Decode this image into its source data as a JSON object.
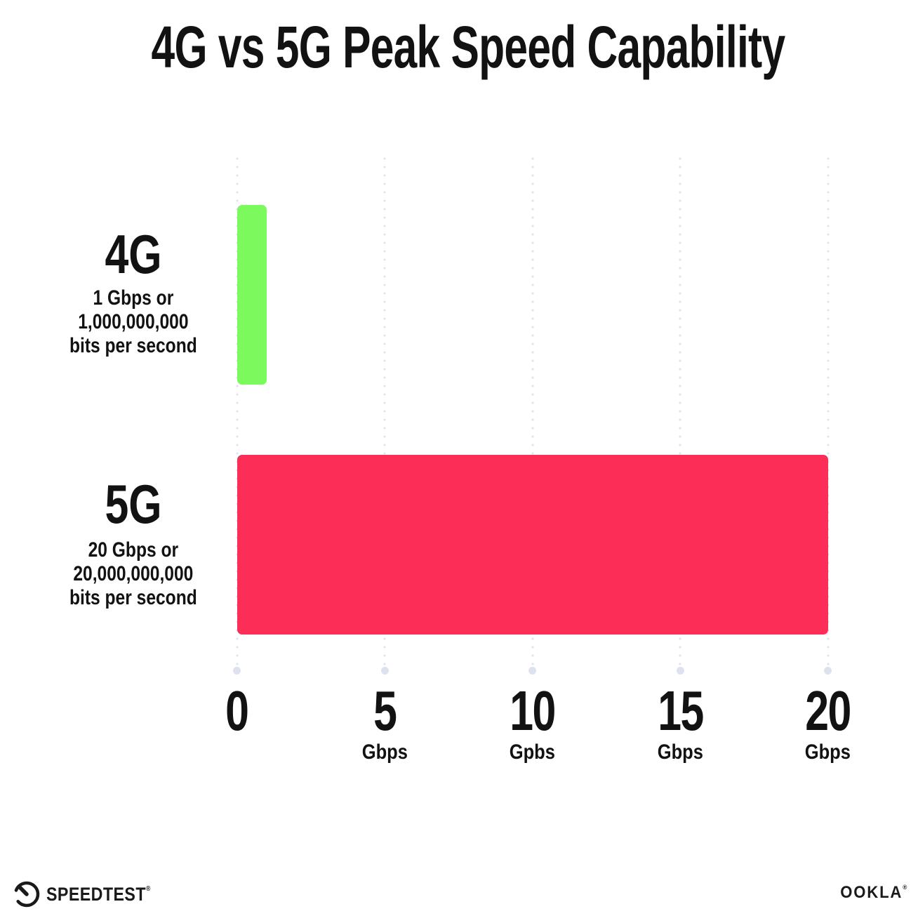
{
  "title": "4G vs 5G Peak Speed Capability",
  "chart_data": {
    "type": "bar",
    "orientation": "horizontal",
    "title": "4G vs 5G Peak Speed Capability",
    "categories": [
      "4G",
      "5G"
    ],
    "values": [
      1,
      20
    ],
    "value_unit": "Gbps",
    "bar_colors": [
      "#7BF95D",
      "#FC2D56"
    ],
    "category_sublabels": [
      [
        "1 Gbps or",
        "1,000,000,000",
        "bits per second"
      ],
      [
        "20 Gbps or",
        "20,000,000,000",
        "bits per second"
      ]
    ],
    "x_ticks": [
      {
        "value": "0",
        "unit": ""
      },
      {
        "value": "5",
        "unit": "Gbps"
      },
      {
        "value": "10",
        "unit": "Gpbs"
      },
      {
        "value": "15",
        "unit": "Gbps"
      },
      {
        "value": "20",
        "unit": "Gbps"
      }
    ],
    "xlim": [
      0,
      20
    ],
    "grid": "vertical dotted",
    "legend": "none"
  },
  "colors": {
    "bar_4g": "#7BF95D",
    "bar_5g": "#FC2D56",
    "grid_dot": "#e2e3ee",
    "grid_end_dot": "#dee2ef",
    "text": "#121212",
    "background": "#ffffff"
  },
  "footer": {
    "speedtest_wordmark": "SPEEDTEST",
    "speedtest_reg": "®",
    "ookla_wordmark": "OOKLA",
    "ookla_reg": "®"
  }
}
